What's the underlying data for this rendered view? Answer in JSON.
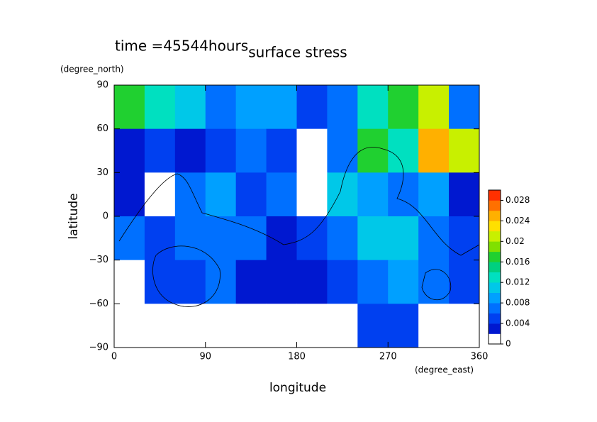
{
  "chart_data": {
    "type": "contour",
    "title": "surface stress",
    "subtitle": "time =45544hours",
    "x_label": "longitude",
    "x_unit": "(degree_east)",
    "y_label": "latitude",
    "y_unit": "(degree_north)",
    "xlim": [
      0,
      360
    ],
    "xticks": [
      0,
      90,
      180,
      270,
      360
    ],
    "ylim": [
      -90,
      90
    ],
    "yticks": [
      {
        "value": -90,
        "label": "−90"
      },
      {
        "value": -60,
        "label": "−60"
      },
      {
        "value": -30,
        "label": "−30"
      },
      0,
      30,
      60,
      90
    ],
    "lon_bins": [
      0,
      30,
      60,
      90,
      120,
      150,
      180,
      210,
      240,
      270,
      300,
      330,
      360
    ],
    "lat_bins": [
      90,
      60,
      30,
      0,
      -30,
      -60,
      -90
    ],
    "z": [
      [
        0.016,
        0.012,
        0.01,
        0.006,
        0.008,
        0.008,
        0.005,
        0.006,
        0.012,
        0.016,
        0.02,
        0.006
      ],
      [
        0.002,
        0.004,
        0.003,
        0.004,
        0.006,
        0.004,
        0.001,
        0.006,
        0.016,
        0.012,
        0.024,
        0.02
      ],
      [
        0.002,
        0.001,
        0.006,
        0.008,
        0.005,
        0.006,
        0.001,
        0.01,
        0.008,
        0.006,
        0.008,
        0.003
      ],
      [
        0.006,
        0.004,
        0.006,
        0.006,
        0.006,
        0.002,
        0.004,
        0.006,
        0.01,
        0.01,
        0.006,
        0.004
      ],
      [
        0.001,
        0.005,
        0.004,
        0.006,
        0.002,
        0.003,
        0.002,
        0.004,
        0.006,
        0.008,
        0.006,
        0.004
      ],
      [
        0,
        0.001,
        0,
        0,
        0,
        0,
        0,
        0,
        0.004,
        0.004,
        0.001,
        0.001
      ]
    ],
    "levels": [
      0,
      0.002,
      0.004,
      0.006,
      0.008,
      0.01,
      0.012,
      0.014,
      0.016,
      0.018,
      0.02,
      0.022,
      0.024,
      0.026,
      0.028,
      0.03
    ],
    "colors": [
      "#ffffff",
      "#0018d0",
      "#0040f0",
      "#0070ff",
      "#00a0ff",
      "#00c8e8",
      "#00e0c0",
      "#00d080",
      "#20d030",
      "#80e000",
      "#c8f000",
      "#ffe000",
      "#ffb000",
      "#ff7000",
      "#ff3000"
    ],
    "cticks": [
      0,
      0.004,
      0.008,
      0.012,
      0.016,
      0.02,
      0.024,
      0.028
    ]
  }
}
